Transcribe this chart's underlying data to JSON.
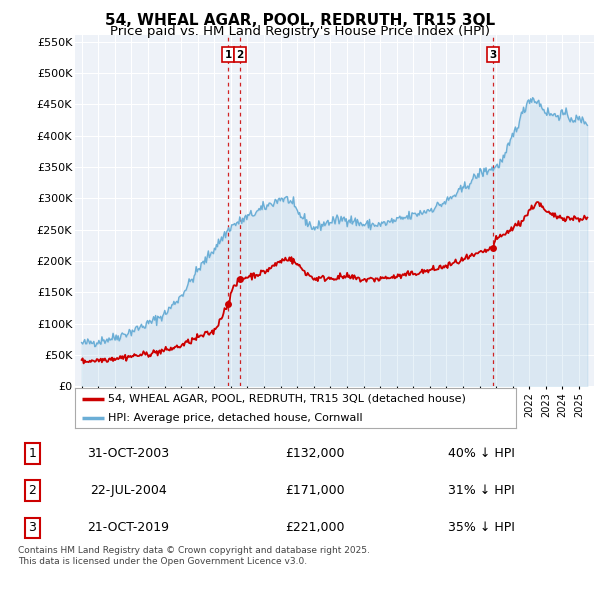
{
  "title": "54, WHEAL AGAR, POOL, REDRUTH, TR15 3QL",
  "subtitle": "Price paid vs. HM Land Registry's House Price Index (HPI)",
  "ylim": [
    0,
    560000
  ],
  "yticks": [
    0,
    50000,
    100000,
    150000,
    200000,
    250000,
    300000,
    350000,
    400000,
    450000,
    500000,
    550000
  ],
  "ytick_labels": [
    "£0",
    "£50K",
    "£100K",
    "£150K",
    "£200K",
    "£250K",
    "£300K",
    "£350K",
    "£400K",
    "£450K",
    "£500K",
    "£550K"
  ],
  "xlim_start": 1994.6,
  "xlim_end": 2025.9,
  "hpi_color": "#6baed6",
  "hpi_fill_color": "#deebf7",
  "price_color": "#cc0000",
  "vline1_color": "#cc0000",
  "vline2_color": "#6baed6",
  "background_color": "#eef2f8",
  "grid_color": "#ffffff",
  "transactions": [
    {
      "label": "1",
      "date": "31-OCT-2003",
      "year": 2003.83,
      "price": 132000,
      "pct": "40% ↓ HPI"
    },
    {
      "label": "2",
      "date": "22-JUL-2004",
      "year": 2004.55,
      "price": 171000,
      "pct": "31% ↓ HPI"
    },
    {
      "label": "3",
      "date": "21-OCT-2019",
      "year": 2019.8,
      "price": 221000,
      "pct": "35% ↓ HPI"
    }
  ],
  "legend_entries": [
    "54, WHEAL AGAR, POOL, REDRUTH, TR15 3QL (detached house)",
    "HPI: Average price, detached house, Cornwall"
  ],
  "footer": "Contains HM Land Registry data © Crown copyright and database right 2025.\nThis data is licensed under the Open Government Licence v3.0.",
  "title_fontsize": 11,
  "subtitle_fontsize": 9.5
}
